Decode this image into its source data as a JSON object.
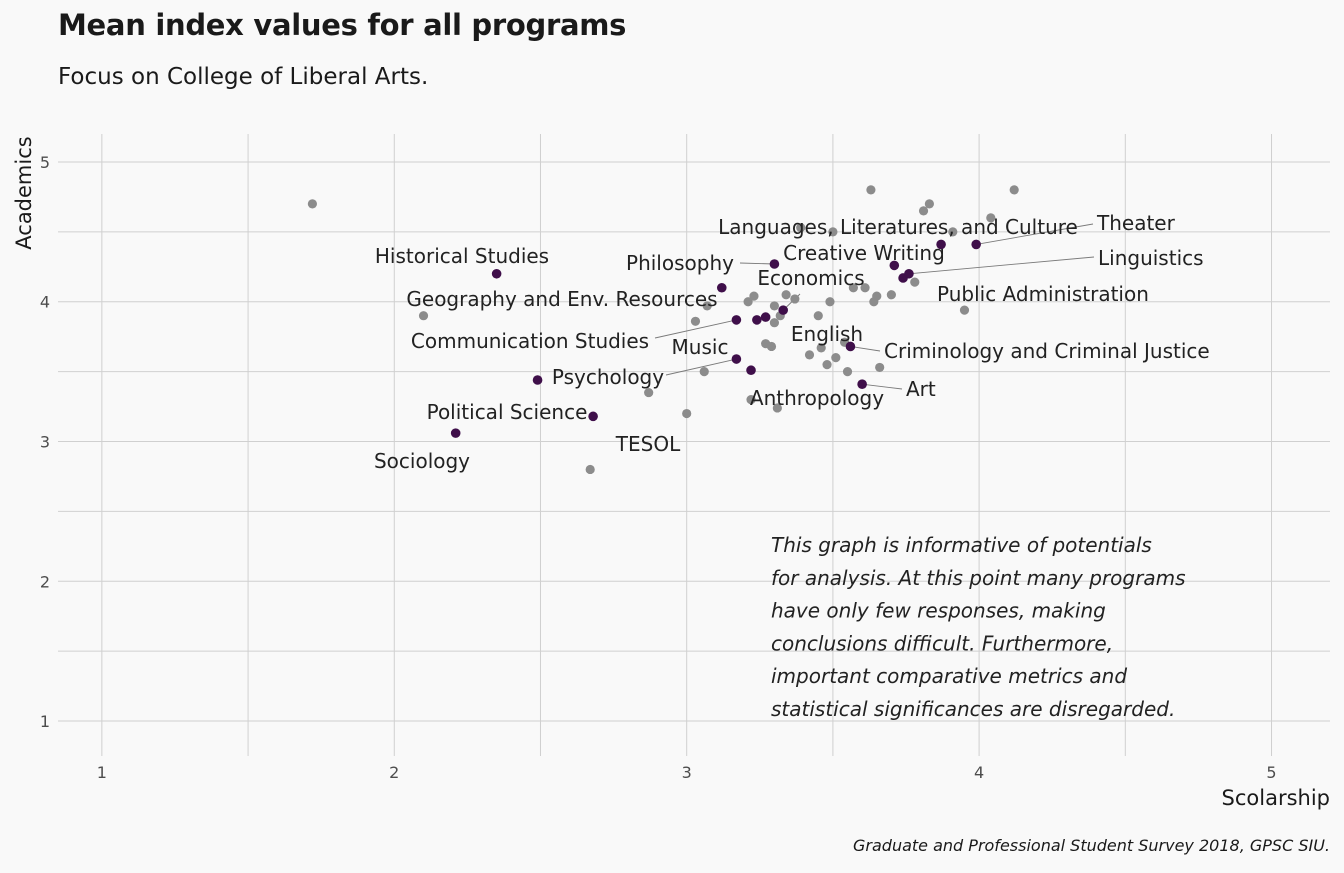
{
  "title": "Mean index values for all programs",
  "subtitle": "Focus on College of Liberal Arts.",
  "caption": "Graduate and Professional Student Survey 2018, GPSC SIU.",
  "colors": {
    "background": "#f9f9f9",
    "grid": "#d0d0d0",
    "other_points": "#8c8c8c",
    "focus_points": "#3f0f4a",
    "leader_lines": "#7a7a7a"
  },
  "chart_data": {
    "type": "scatter",
    "xlabel": "Scolarship",
    "ylabel": "Academics",
    "xlim": [
      0.85,
      5.2
    ],
    "ylim": [
      0.75,
      5.2
    ],
    "x_ticks": [
      "1",
      "2",
      "3",
      "4",
      "5"
    ],
    "y_ticks": [
      "1",
      "2",
      "3",
      "4",
      "5"
    ],
    "grid": true,
    "annotation": [
      "This graph is informative of potentials",
      "for analysis. At this point many programs",
      "have only few responses, making",
      "conclusions difficult. Furthermore,",
      "important comparative metrics and",
      "statistical significances are disregarded."
    ],
    "other_programs": [
      [
        1.72,
        4.7
      ],
      [
        2.1,
        3.9
      ],
      [
        2.67,
        2.8
      ],
      [
        2.87,
        3.35
      ],
      [
        3.0,
        3.2
      ],
      [
        3.03,
        3.86
      ],
      [
        3.06,
        3.5
      ],
      [
        3.07,
        3.97
      ],
      [
        3.21,
        4.0
      ],
      [
        3.23,
        4.04
      ],
      [
        3.22,
        3.3
      ],
      [
        3.27,
        3.7
      ],
      [
        3.29,
        3.68
      ],
      [
        3.3,
        3.85
      ],
      [
        3.3,
        3.97
      ],
      [
        3.31,
        3.24
      ],
      [
        3.32,
        3.9
      ],
      [
        3.34,
        4.05
      ],
      [
        3.37,
        4.02
      ],
      [
        3.39,
        4.53
      ],
      [
        3.42,
        3.62
      ],
      [
        3.45,
        3.9
      ],
      [
        3.46,
        3.67
      ],
      [
        3.48,
        3.55
      ],
      [
        3.49,
        4.0
      ],
      [
        3.5,
        4.5
      ],
      [
        3.51,
        3.6
      ],
      [
        3.54,
        3.71
      ],
      [
        3.55,
        3.5
      ],
      [
        3.57,
        4.1
      ],
      [
        3.61,
        4.1
      ],
      [
        3.63,
        4.8
      ],
      [
        3.64,
        4.0
      ],
      [
        3.65,
        4.04
      ],
      [
        3.66,
        3.53
      ],
      [
        3.7,
        4.05
      ],
      [
        3.78,
        4.14
      ],
      [
        3.81,
        4.65
      ],
      [
        3.83,
        4.7
      ],
      [
        3.91,
        4.5
      ],
      [
        3.95,
        3.94
      ],
      [
        4.04,
        4.6
      ],
      [
        4.12,
        4.8
      ]
    ],
    "college_of_liberal_arts": [
      {
        "name": "Historical Studies",
        "x": 2.35,
        "y": 4.2
      },
      {
        "name": "Geography and Env. Resources",
        "x": 3.12,
        "y": 4.1
      },
      {
        "name": "Communication Studies",
        "x": 3.17,
        "y": 3.87
      },
      {
        "name": "Political Science",
        "x": 2.49,
        "y": 3.44
      },
      {
        "name": "Sociology",
        "x": 2.21,
        "y": 3.06
      },
      {
        "name": "TESOL",
        "x": 2.68,
        "y": 3.18
      },
      {
        "name": "Psychology",
        "x": 3.17,
        "y": 3.59
      },
      {
        "name": "Music",
        "x": 3.24,
        "y": 3.87
      },
      {
        "name": "Philosophy",
        "x": 3.3,
        "y": 4.27
      },
      {
        "name": "Economics",
        "x": 3.33,
        "y": 3.94
      },
      {
        "name": "English",
        "x": 3.27,
        "y": 3.89
      },
      {
        "name": "Anthropology",
        "x": 3.22,
        "y": 3.51
      },
      {
        "name": "Criminology and Criminal Justice",
        "x": 3.56,
        "y": 3.68
      },
      {
        "name": "Art",
        "x": 3.6,
        "y": 3.41
      },
      {
        "name": "Creative Writing",
        "x": 3.71,
        "y": 4.26
      },
      {
        "name": "Public Administration",
        "x": 3.74,
        "y": 4.17
      },
      {
        "name": "Linguistics",
        "x": 3.76,
        "y": 4.2
      },
      {
        "name": "Languages, Literatures, and Culture",
        "x": 3.87,
        "y": 4.41
      },
      {
        "name": "Theater",
        "x": 3.99,
        "y": 4.41
      }
    ]
  }
}
